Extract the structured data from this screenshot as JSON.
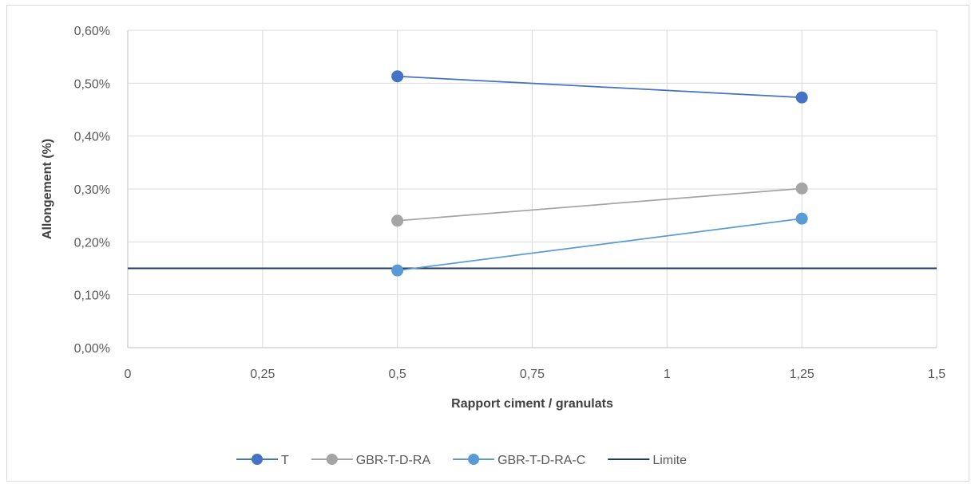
{
  "chart_data": {
    "type": "scatter",
    "xlabel": "Rapport ciment / granulats",
    "ylabel": "Allongement (%)",
    "xlim": [
      0,
      1.5
    ],
    "ylim": [
      0,
      0.006
    ],
    "x_ticks": [
      "0",
      "0,25",
      "0,5",
      "0,75",
      "1",
      "1,25",
      "1,5"
    ],
    "y_ticks": [
      "0,00%",
      "0,10%",
      "0,20%",
      "0,30%",
      "0,40%",
      "0,50%",
      "0,60%"
    ],
    "grid": true,
    "legend_position": "bottom",
    "series": [
      {
        "name": "T",
        "color": "#4472c4",
        "marker": true,
        "points": [
          [
            0.5,
            0.00513
          ],
          [
            1.25,
            0.00473
          ]
        ]
      },
      {
        "name": "GBR-T-D-RA",
        "color": "#a5a5a5",
        "marker": true,
        "points": [
          [
            0.5,
            0.0024
          ],
          [
            1.25,
            0.00301
          ]
        ]
      },
      {
        "name": "GBR-T-D-RA-C",
        "color": "#5b9bd5",
        "marker": true,
        "points": [
          [
            0.5,
            0.00146
          ],
          [
            1.25,
            0.00244
          ]
        ]
      },
      {
        "name": "Limite",
        "color": "#203864",
        "marker": false,
        "points": [
          [
            0,
            0.0015
          ],
          [
            1.5,
            0.0015
          ]
        ]
      }
    ]
  }
}
